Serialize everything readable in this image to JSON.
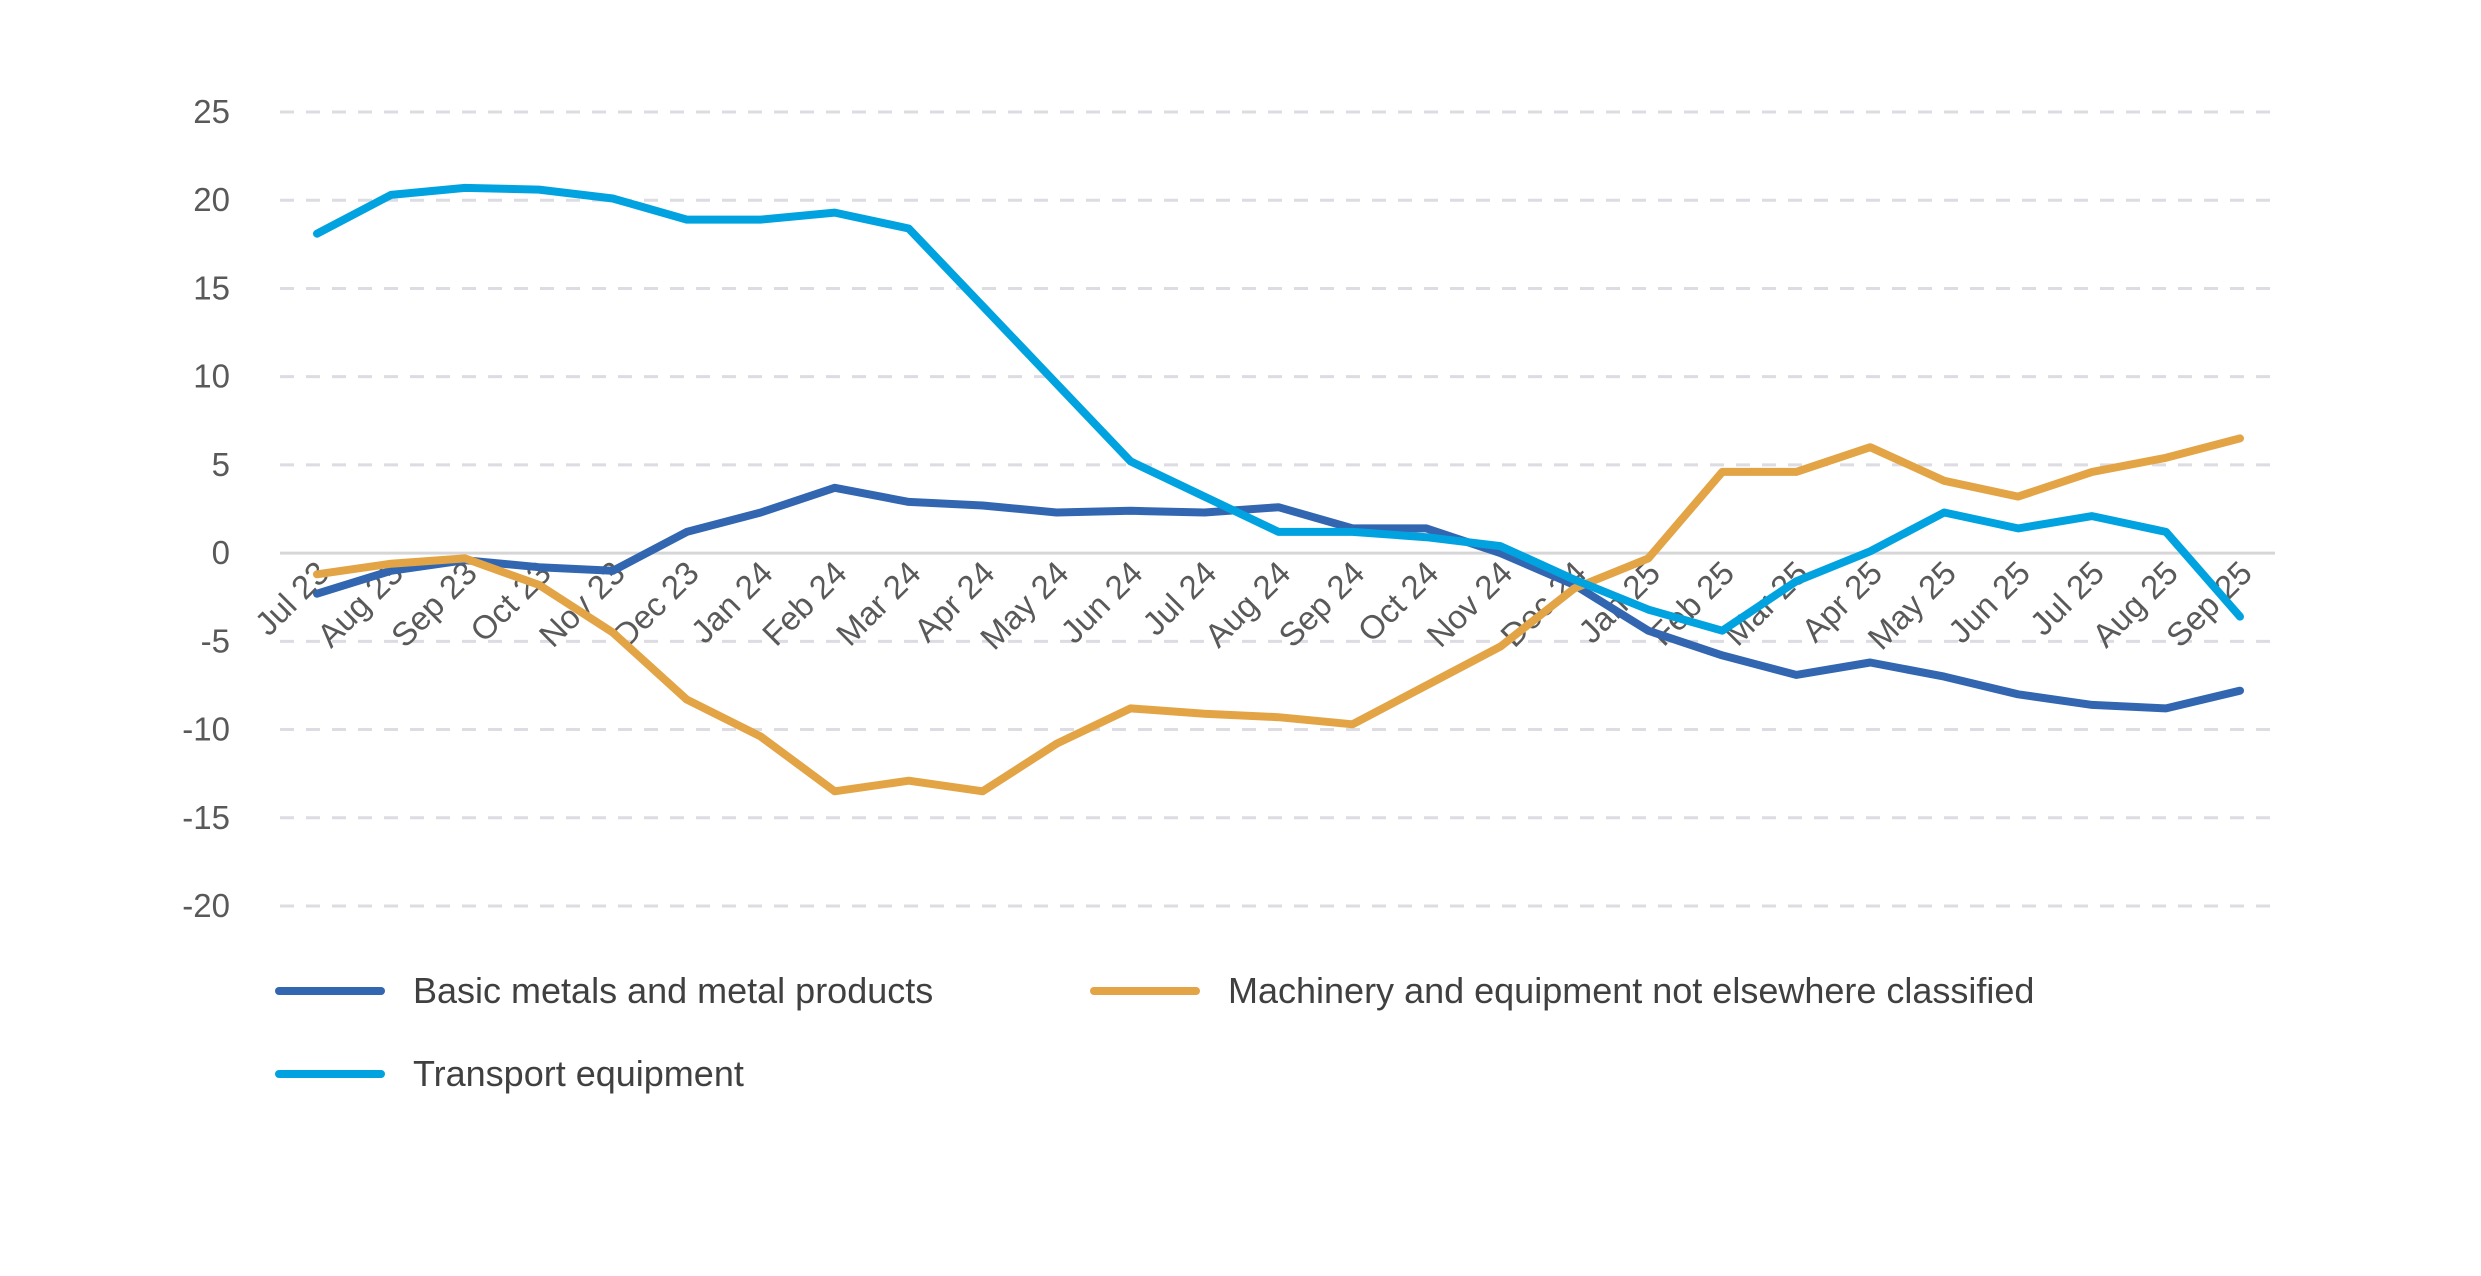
{
  "chart_data": {
    "type": "line",
    "title": "",
    "xlabel": "",
    "ylabel": "",
    "ylim": [
      -20,
      25
    ],
    "yticks": [
      25,
      20,
      15,
      10,
      5,
      0,
      -5,
      -10,
      -15,
      -20
    ],
    "grid": true,
    "legend_position": "bottom",
    "categories": [
      "Jul 23",
      "Aug 23",
      "Sep 23",
      "Oct 23",
      "Nov 23",
      "Dec 23",
      "Jan 24",
      "Feb 24",
      "Mar 24",
      "Apr 24",
      "May 24",
      "Jun 24",
      "Jul 24",
      "Aug 24",
      "Sep 24",
      "Oct 24",
      "Nov 24",
      "Dec 24",
      "Jan 25",
      "Feb 25",
      "Mar 25",
      "Apr 25",
      "May 25",
      "Jun 25",
      "Jul 25",
      "Aug 25",
      "Sep 25"
    ],
    "series": [
      {
        "name": "Basic metals and metal products",
        "color": "#3366b0",
        "values": [
          -2.3,
          -1.0,
          -0.4,
          -0.8,
          -1.0,
          1.2,
          2.3,
          3.7,
          2.9,
          2.7,
          2.3,
          2.4,
          2.3,
          2.6,
          1.4,
          1.4,
          0.0,
          -1.8,
          -4.4,
          -5.8,
          -6.9,
          -6.2,
          -7.0,
          -8.0,
          -8.6,
          -8.8,
          -7.8
        ]
      },
      {
        "name": "Machinery and equipment not elsewhere classified",
        "color": "#e3a446",
        "values": [
          -1.2,
          -0.6,
          -0.3,
          -1.8,
          -4.5,
          -8.3,
          -10.4,
          -13.5,
          -12.9,
          -13.5,
          -10.8,
          -8.8,
          -9.1,
          -9.3,
          -9.7,
          -7.5,
          -5.3,
          -2.0,
          -0.3,
          4.6,
          4.6,
          6.0,
          4.1,
          3.2,
          4.6,
          5.4,
          6.5
        ]
      },
      {
        "name": "Transport equipment",
        "color": "#00a3e0",
        "values": [
          18.1,
          20.3,
          20.7,
          20.6,
          20.1,
          18.9,
          18.9,
          19.3,
          18.4,
          14.0,
          9.6,
          5.2,
          3.2,
          1.2,
          1.2,
          0.9,
          0.4,
          -1.5,
          -3.2,
          -4.4,
          -1.6,
          0.1,
          2.3,
          1.4,
          2.1,
          1.2,
          -3.6
        ]
      }
    ]
  }
}
